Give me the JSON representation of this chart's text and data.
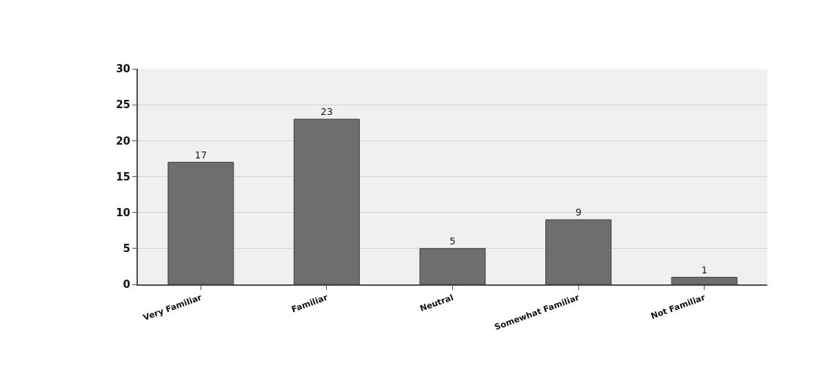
{
  "chart_data": {
    "type": "bar",
    "categories": [
      "Very Familiar",
      "Familiar",
      "Neutral",
      "Somewhat Familiar",
      "Not Familiar"
    ],
    "values": [
      17,
      23,
      5,
      9,
      1
    ],
    "color": "#6e6e6e",
    "ylim": [
      0,
      30
    ],
    "yticks": [
      0,
      5,
      10,
      15,
      20,
      25,
      30
    ],
    "grid": "y",
    "data_labels": true
  }
}
